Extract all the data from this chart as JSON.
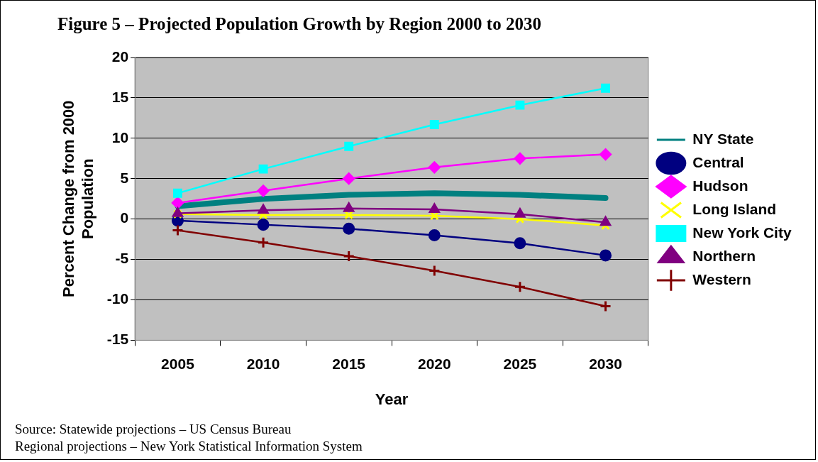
{
  "chart_data": {
    "type": "line",
    "title": "Figure 5 – Projected Population Growth by Region 2000 to 2030",
    "xlabel": "Year",
    "ylabel": "Percent Change from 2000 Population",
    "categories": [
      "2005",
      "2010",
      "2015",
      "2020",
      "2025",
      "2030"
    ],
    "series": [
      {
        "name": "NY State",
        "color": "#008080",
        "marker": "none",
        "values": [
          1.6,
          2.5,
          3.0,
          3.2,
          3.0,
          2.6
        ]
      },
      {
        "name": "Central",
        "color": "#000080",
        "marker": "circle",
        "values": [
          -0.2,
          -0.7,
          -1.2,
          -2.0,
          -3.0,
          -4.5
        ]
      },
      {
        "name": "Hudson",
        "color": "#ff00ff",
        "marker": "diamond",
        "values": [
          2.0,
          3.5,
          5.0,
          6.4,
          7.5,
          8.0
        ]
      },
      {
        "name": "Long Island",
        "color": "#ffff00",
        "marker": "cross",
        "values": [
          0.6,
          0.5,
          0.5,
          0.4,
          0.0,
          -0.8
        ]
      },
      {
        "name": "New York City",
        "color": "#00ffff",
        "marker": "square",
        "values": [
          3.2,
          6.2,
          9.0,
          11.7,
          14.1,
          16.2
        ]
      },
      {
        "name": "Northern",
        "color": "#800080",
        "marker": "triangle",
        "values": [
          0.7,
          1.1,
          1.3,
          1.2,
          0.6,
          -0.4
        ]
      },
      {
        "name": "Western",
        "color": "#800000",
        "marker": "plus",
        "values": [
          -1.4,
          -2.9,
          -4.6,
          -6.4,
          -8.4,
          -10.8
        ]
      }
    ],
    "ylim": [
      -15,
      20
    ],
    "yticks": [
      -15,
      -10,
      -5,
      0,
      5,
      10,
      15,
      20
    ],
    "grid": "y",
    "legend": "right",
    "annotations": [
      "Source: Statewide projections – US Census Bureau",
      "Regional projections – New York Statistical Information System"
    ]
  }
}
